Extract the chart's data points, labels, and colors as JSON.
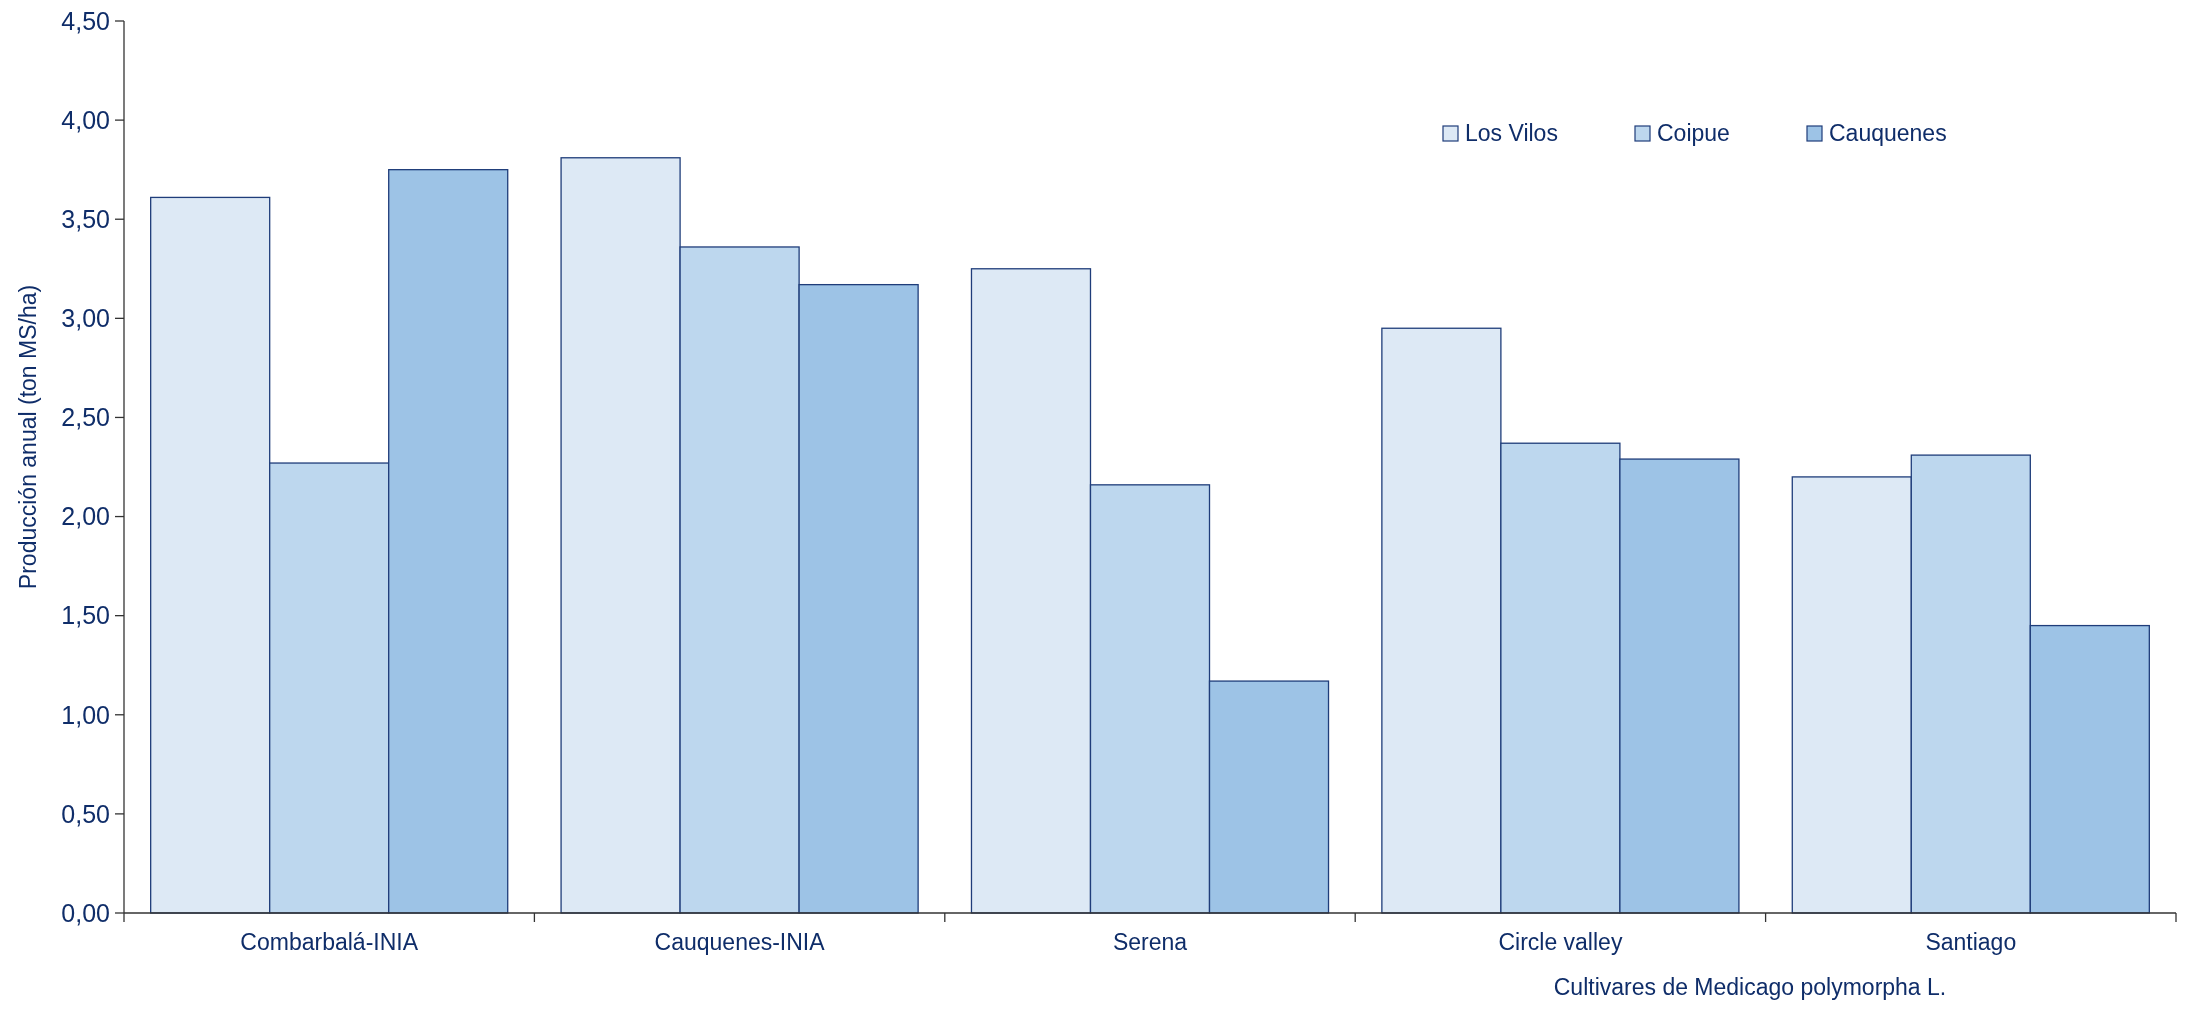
{
  "chart_data": {
    "type": "bar",
    "xlabel": "Cultivares de Medicago polymorpha L.",
    "ylabel": "Producción anual (ton MS/ha)",
    "categories": [
      "Combarbalá-INIA",
      "Cauquenes-INIA",
      "Serena",
      "Circle valley",
      "Santiago"
    ],
    "series": [
      {
        "name": "Los Vilos",
        "color": "#dde9f5",
        "values": [
          3.61,
          3.81,
          3.25,
          2.95,
          2.2
        ]
      },
      {
        "name": "Coipue",
        "color": "#bdd7ee",
        "values": [
          2.27,
          3.36,
          2.16,
          2.37,
          2.31
        ]
      },
      {
        "name": "Cauquenes",
        "color": "#9dc3e6",
        "values": [
          3.75,
          3.17,
          1.17,
          2.29,
          1.45
        ]
      }
    ],
    "ylim": [
      0,
      4.5
    ],
    "yticks": [
      {
        "value": 0,
        "label": "0,00"
      },
      {
        "value": 0.5,
        "label": "0,50"
      },
      {
        "value": 1,
        "label": "1,00"
      },
      {
        "value": 1.5,
        "label": "1,50"
      },
      {
        "value": 2,
        "label": "2,00"
      },
      {
        "value": 2.5,
        "label": "2,50"
      },
      {
        "value": 3,
        "label": "3,00"
      },
      {
        "value": 3.5,
        "label": "3,50"
      },
      {
        "value": 4,
        "label": "4,00"
      },
      {
        "value": 4.5,
        "label": "4,50"
      }
    ],
    "legend": "top right"
  }
}
